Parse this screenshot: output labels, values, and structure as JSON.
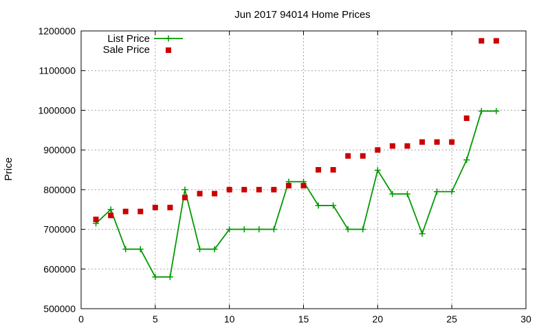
{
  "chart_data": {
    "type": "line",
    "title": "Jun 2017 94014 Home Prices",
    "xlabel": "",
    "ylabel": "Price",
    "xlim": [
      0,
      30
    ],
    "ylim": [
      500000,
      1200000
    ],
    "x_ticks": [
      0,
      5,
      10,
      15,
      20,
      25,
      30
    ],
    "y_ticks": [
      500000,
      600000,
      700000,
      800000,
      900000,
      1000000,
      1100000,
      1200000
    ],
    "grid": true,
    "legend_position": "top-left",
    "series": [
      {
        "name": "List Price",
        "style": "line+cross",
        "color": "#009900",
        "x": [
          1,
          2,
          3,
          4,
          5,
          6,
          7,
          8,
          9,
          10,
          11,
          12,
          13,
          14,
          15,
          16,
          17,
          18,
          19,
          20,
          21,
          22,
          23,
          24,
          25,
          26,
          27,
          28
        ],
        "values": [
          715000,
          750000,
          650000,
          650000,
          580000,
          580000,
          800000,
          650000,
          650000,
          700000,
          700000,
          700000,
          700000,
          820000,
          820000,
          760000,
          760000,
          700000,
          700000,
          849000,
          789000,
          789000,
          689000,
          795000,
          795000,
          875000,
          998000,
          998000
        ]
      },
      {
        "name": "Sale Price",
        "style": "square-points",
        "color": "#cc0000",
        "x": [
          1,
          2,
          3,
          4,
          5,
          6,
          7,
          8,
          9,
          10,
          11,
          12,
          13,
          14,
          15,
          16,
          17,
          18,
          19,
          20,
          21,
          22,
          23,
          24,
          25,
          26,
          27,
          28
        ],
        "values": [
          725000,
          735000,
          745000,
          745000,
          755000,
          755000,
          780000,
          790000,
          790000,
          800000,
          800000,
          800000,
          800000,
          810000,
          810000,
          850000,
          850000,
          885000,
          885000,
          900000,
          910000,
          910000,
          920000,
          920000,
          920000,
          980000,
          1175000,
          1175000
        ]
      }
    ]
  }
}
